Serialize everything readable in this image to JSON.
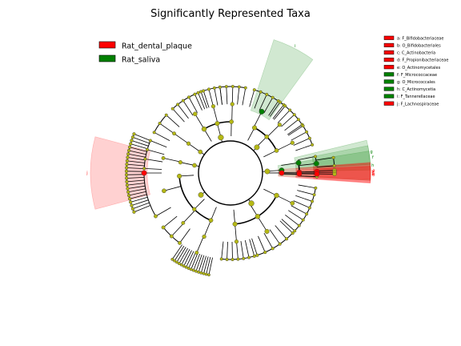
{
  "chart_data": {
    "type": "cladogram",
    "title": "Significantly Represented Taxa",
    "classes": [
      {
        "name": "Rat_dental_plaque",
        "color": "#ff0000"
      },
      {
        "name": "Rat_saliva",
        "color": "#008000"
      }
    ],
    "features": [
      {
        "letter": "a",
        "taxon": "a: F_Bifidobacteriaceae",
        "rank": "family",
        "class": "Rat_dental_plaque"
      },
      {
        "letter": "b",
        "taxon": "b: O_Bifidobacteriales",
        "rank": "order",
        "class": "Rat_dental_plaque"
      },
      {
        "letter": "c",
        "taxon": "c: C_Actinobacteria",
        "rank": "class",
        "class": "Rat_dental_plaque"
      },
      {
        "letter": "d",
        "taxon": "d: F_Propionibacteriaceae",
        "rank": "family",
        "class": "Rat_dental_plaque"
      },
      {
        "letter": "e",
        "taxon": "e: O_Actinomycetales",
        "rank": "order",
        "class": "Rat_dental_plaque"
      },
      {
        "letter": "f",
        "taxon": "f: F_Micrococcaceae",
        "rank": "family",
        "class": "Rat_saliva"
      },
      {
        "letter": "g",
        "taxon": "g: O_Micrococcales",
        "rank": "order",
        "class": "Rat_saliva"
      },
      {
        "letter": "h",
        "taxon": "h: C_Actinomycetia",
        "rank": "class",
        "class": "Rat_saliva"
      },
      {
        "letter": "i",
        "taxon": "i: F_Tannerellaceae",
        "rank": "family",
        "class": "Rat_saliva"
      },
      {
        "letter": "j",
        "taxon": "j: F_Lachnospiraceae",
        "rank": "family",
        "class": "Rat_dental_plaque"
      }
    ],
    "node_color_default": "#b5b815",
    "legend_placement": "top-left"
  }
}
